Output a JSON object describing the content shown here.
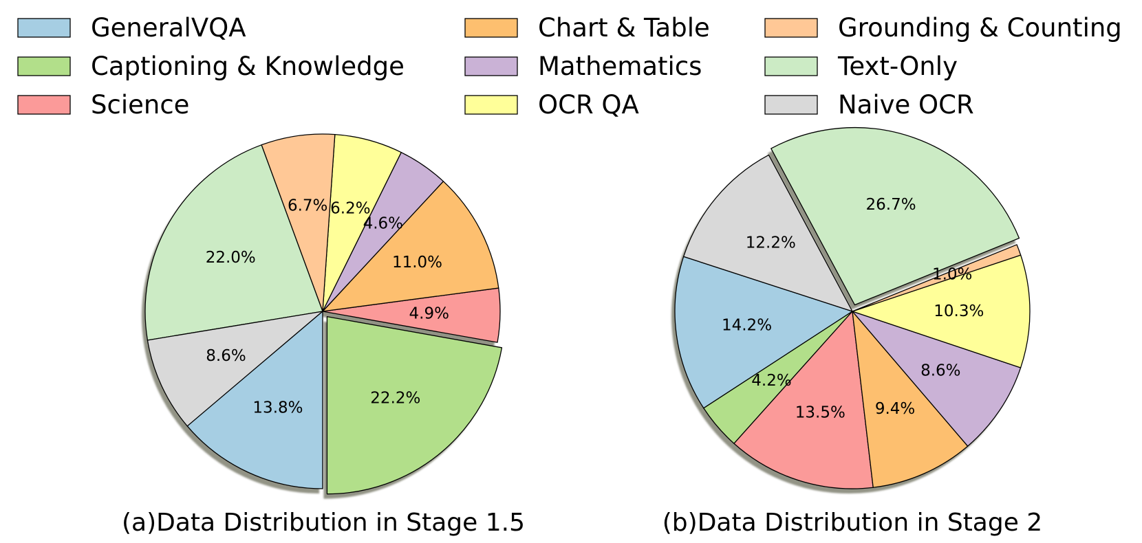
{
  "legend": {
    "items": [
      {
        "label": "GeneralVQA",
        "color": "#a6cee3"
      },
      {
        "label": "Chart & Table",
        "color": "#fdbf6f"
      },
      {
        "label": "Grounding & Counting",
        "color": "#ffc896"
      },
      {
        "label": "Captioning & Knowledge",
        "color": "#b2df8a"
      },
      {
        "label": "Mathematics",
        "color": "#cab2d6"
      },
      {
        "label": "Text-Only",
        "color": "#ccebc5"
      },
      {
        "label": "Science",
        "color": "#fb9a99"
      },
      {
        "label": "OCR QA",
        "color": "#ffff99"
      },
      {
        "label": "Naive OCR",
        "color": "#d9d9d9"
      }
    ]
  },
  "chart_data": [
    {
      "type": "pie",
      "title": "(a)Data Distribution in Stage 1.5",
      "exploded": "Captioning & Knowledge",
      "shadow": true,
      "slices": [
        {
          "label": "Captioning & Knowledge",
          "value": 22.2,
          "text": "22.2%",
          "color": "#b2df8a"
        },
        {
          "label": "Science",
          "value": 4.9,
          "text": "4.9%",
          "color": "#fb9a99"
        },
        {
          "label": "Chart & Table",
          "value": 11.0,
          "text": "11.0%",
          "color": "#fdbf6f"
        },
        {
          "label": "Mathematics",
          "value": 4.6,
          "text": "4.6%",
          "color": "#cab2d6"
        },
        {
          "label": "OCR QA",
          "value": 6.2,
          "text": "6.2%",
          "color": "#ffff99"
        },
        {
          "label": "Grounding & Counting",
          "value": 6.7,
          "text": "6.7%",
          "color": "#ffc896"
        },
        {
          "label": "Text-Only",
          "value": 22.0,
          "text": "22.0%",
          "color": "#ccebc5"
        },
        {
          "label": "Naive OCR",
          "value": 8.6,
          "text": "8.6%",
          "color": "#d9d9d9"
        },
        {
          "label": "GeneralVQA",
          "value": 13.8,
          "text": "13.8%",
          "color": "#a6cee3"
        }
      ]
    },
    {
      "type": "pie",
      "title": "(b)Data Distribution in Stage 2",
      "exploded": "Text-Only",
      "shadow": true,
      "slices": [
        {
          "label": "GeneralVQA",
          "value": 14.2,
          "text": "14.2%",
          "color": "#a6cee3"
        },
        {
          "label": "Captioning & Knowledge",
          "value": 4.2,
          "text": "4.2%",
          "color": "#b2df8a"
        },
        {
          "label": "Science",
          "value": 13.5,
          "text": "13.5%",
          "color": "#fb9a99"
        },
        {
          "label": "Chart & Table",
          "value": 9.4,
          "text": "9.4%",
          "color": "#fdbf6f"
        },
        {
          "label": "Mathematics",
          "value": 8.6,
          "text": "8.6%",
          "color": "#cab2d6"
        },
        {
          "label": "OCR QA",
          "value": 10.3,
          "text": "10.3%",
          "color": "#ffff99"
        },
        {
          "label": "Grounding & Counting",
          "value": 1.0,
          "text": "1.0%",
          "color": "#ffc896"
        },
        {
          "label": "Text-Only",
          "value": 26.7,
          "text": "26.7%",
          "color": "#ccebc5"
        },
        {
          "label": "Naive OCR",
          "value": 12.2,
          "text": "12.2%",
          "color": "#d9d9d9"
        }
      ]
    }
  ]
}
